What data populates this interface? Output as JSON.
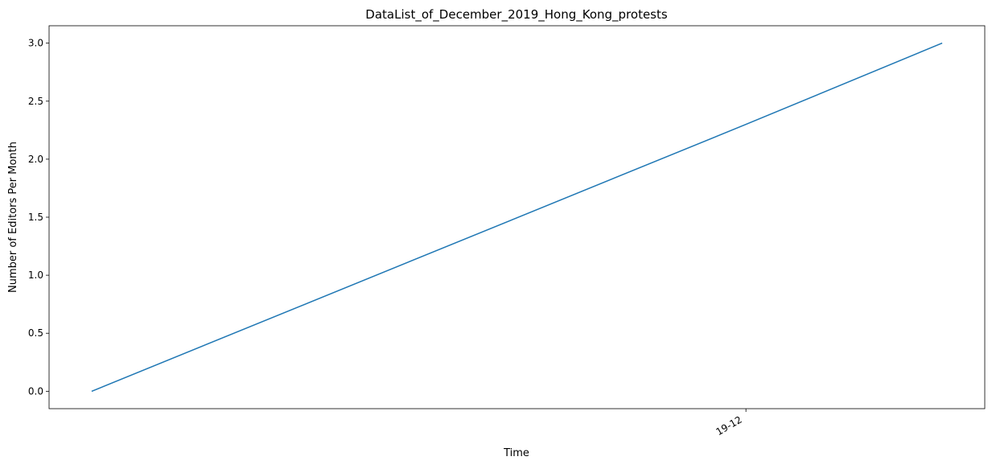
{
  "chart_data": {
    "type": "line",
    "title": "DataList_of_December_2019_Hong_Kong_protests",
    "xlabel": "Time",
    "ylabel": "Number of Editors Per Month",
    "x_tick_labels": [
      "19-12"
    ],
    "y_ticks": [
      0.0,
      0.5,
      1.0,
      1.5,
      2.0,
      2.5,
      3.0
    ],
    "y_tick_labels": [
      "0.0",
      "0.5",
      "1.0",
      "1.5",
      "2.0",
      "2.5",
      "3.0"
    ],
    "ylim": [
      -0.15,
      3.15
    ],
    "grid": false,
    "line_color": "#1f77b4",
    "series": [
      {
        "x": [
          "2019-11-01",
          "2019-12-01",
          "2019-12-10"
        ],
        "values": [
          0,
          2.3,
          3
        ]
      }
    ]
  }
}
